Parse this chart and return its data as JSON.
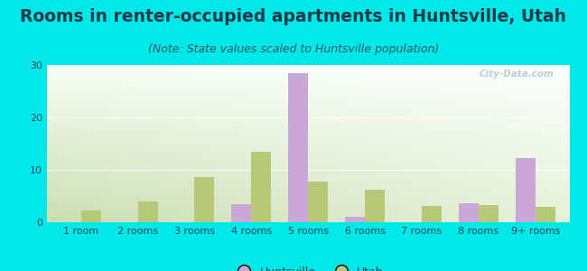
{
  "title": "Rooms in renter-occupied apartments in Huntsville, Utah",
  "subtitle": "(Note: State values scaled to Huntsville population)",
  "categories": [
    "1 room",
    "2 rooms",
    "3 rooms",
    "4 rooms",
    "5 rooms",
    "6 rooms",
    "7 rooms",
    "8 rooms",
    "9+ rooms"
  ],
  "huntsville": [
    0,
    0,
    0,
    3.5,
    28.5,
    1.0,
    0,
    3.7,
    12.3
  ],
  "utah": [
    2.2,
    4.0,
    8.7,
    13.5,
    7.8,
    6.2,
    3.1,
    3.2,
    3.0
  ],
  "huntsville_color": "#c9a8d8",
  "utah_color": "#b8c878",
  "background_color": "#00e8e8",
  "ylim": [
    0,
    30
  ],
  "yticks": [
    0,
    10,
    20,
    30
  ],
  "bar_width": 0.35,
  "title_fontsize": 13.5,
  "subtitle_fontsize": 9,
  "tick_fontsize": 8,
  "legend_fontsize": 9,
  "watermark_text": "City-Data.com",
  "grad_top": "#f5fff5",
  "grad_bottom": "#c8ddb0",
  "grad_right": "#f0f8ff"
}
